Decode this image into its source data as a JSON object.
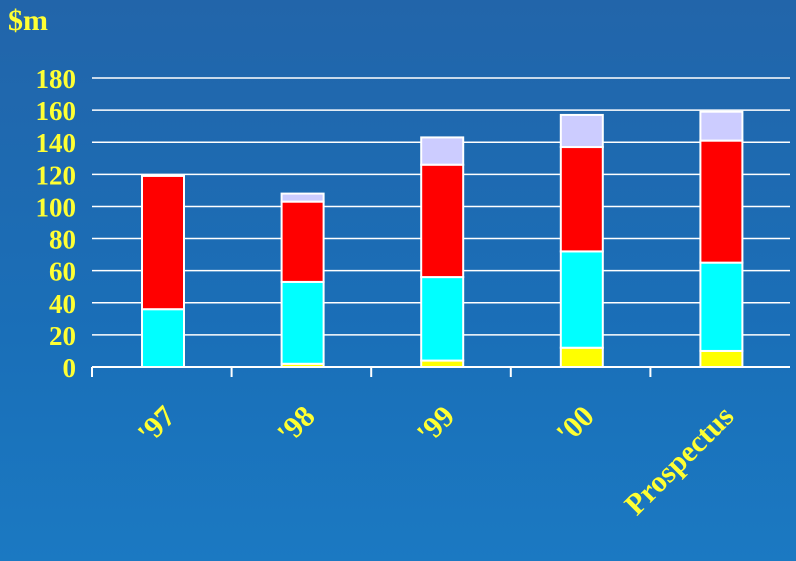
{
  "unit_label": "$m",
  "colors": {
    "text": "#ffff33",
    "gridline": "#ffffff",
    "bar_outline": "#ffffff"
  },
  "chart_data": {
    "type": "bar",
    "stacked": true,
    "categories": [
      "'97",
      "'98",
      "'99",
      "'00",
      "Prospectus"
    ],
    "series": [
      {
        "color": "#ffff00",
        "values": [
          0,
          2,
          4,
          12,
          10
        ]
      },
      {
        "color": "#00ffff",
        "values": [
          36,
          51,
          52,
          60,
          55
        ]
      },
      {
        "color": "#ff0000",
        "values": [
          83,
          50,
          70,
          65,
          76
        ]
      },
      {
        "color": "#ccccff",
        "values": [
          0,
          5,
          17,
          20,
          18
        ]
      }
    ],
    "ylim": [
      0,
      180
    ],
    "y_ticks": [
      0,
      20,
      40,
      60,
      80,
      100,
      120,
      140,
      160,
      180
    ],
    "grid": true,
    "legend": "none"
  }
}
